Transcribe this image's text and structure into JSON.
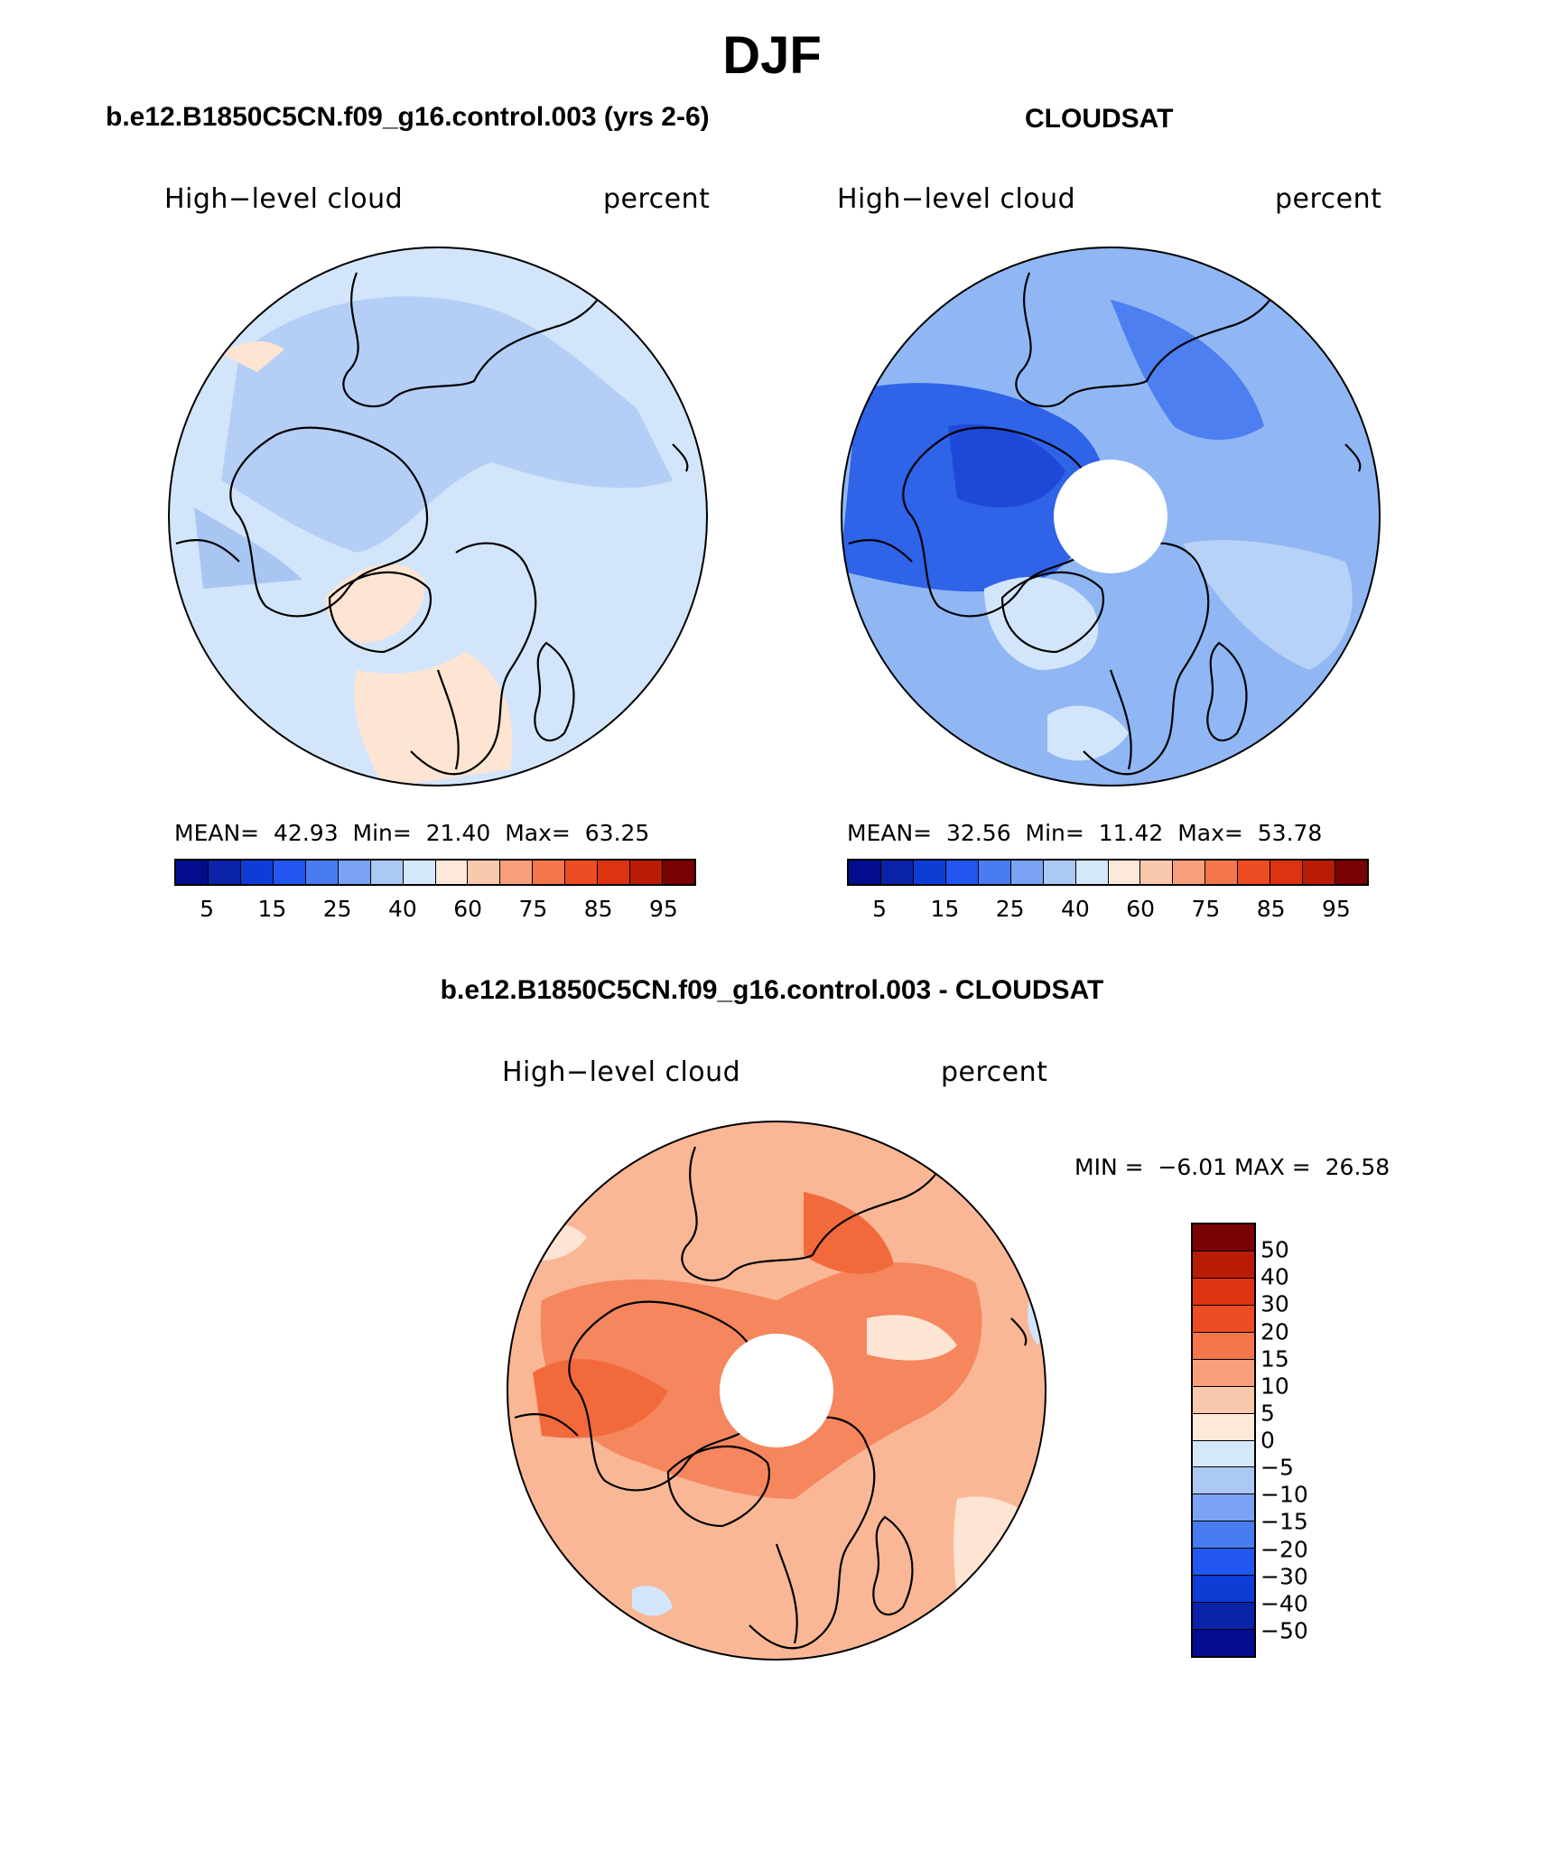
{
  "figure": {
    "title": "DJF"
  },
  "panels": [
    {
      "title": "b.e12.B1850C5CN.f09_g16.control.003 (yrs 2-6)",
      "variable": "High−level cloud",
      "units": "percent",
      "stats": {
        "mean_label": "MEAN=",
        "mean": "42.93",
        "min_label": "Min=",
        "min": "21.40",
        "max_label": "Max=",
        "max": "63.25"
      },
      "base_fill": "#d2e5fa",
      "pole_mask": false
    },
    {
      "title": "CLOUDSAT",
      "variable": "High−level cloud",
      "units": "percent",
      "stats": {
        "mean_label": "MEAN=",
        "mean": "32.56",
        "min_label": "Min=",
        "min": "11.42",
        "max_label": "Max=",
        "max": "53.78"
      },
      "base_fill": "#90b7f3",
      "pole_mask": true
    },
    {
      "title": "b.e12.B1850C5CN.f09_g16.control.003 - CLOUDSAT",
      "variable": "High−level cloud",
      "units": "percent",
      "stats": {
        "min_label": "MIN =",
        "min": "−6.01",
        "max_label": "MAX =",
        "max": "26.58"
      },
      "base_fill": "#f9b796",
      "pole_mask": true
    }
  ],
  "colorbar_abs": {
    "colors": [
      "#030c8d",
      "#0a23a8",
      "#0e3dd6",
      "#2157ee",
      "#4a7cf1",
      "#7ba3f3",
      "#acc8f5",
      "#d5e7fa",
      "#fde8da",
      "#fac9ad",
      "#f7a07b",
      "#f4764c",
      "#ee4c22",
      "#dc3410",
      "#b91c06",
      "#7a0202"
    ],
    "ticks": [
      "5",
      "15",
      "25",
      "40",
      "60",
      "75",
      "85",
      "95"
    ]
  },
  "colorbar_diff": {
    "colors": [
      "#7a0202",
      "#b91c06",
      "#dc3410",
      "#ee4c22",
      "#f4764c",
      "#f7a07b",
      "#fac9ad",
      "#fde8da",
      "#d5e7fa",
      "#acc8f5",
      "#7ba3f3",
      "#4a7cf1",
      "#2157ee",
      "#0e3dd6",
      "#0a23a8",
      "#030c8d"
    ],
    "ticks": [
      "50",
      "40",
      "30",
      "20",
      "15",
      "10",
      "5",
      "0",
      "−5",
      "−10",
      "−15",
      "−20",
      "−30",
      "−40",
      "−50"
    ]
  }
}
